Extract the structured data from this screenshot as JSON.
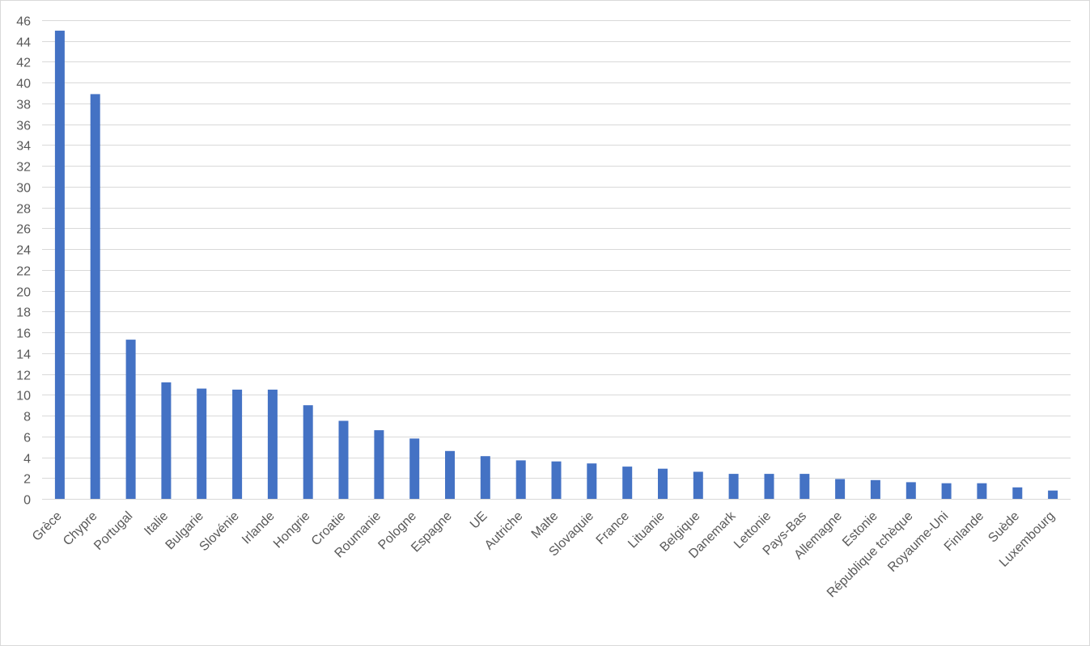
{
  "chart_data": {
    "type": "bar",
    "title": "",
    "xlabel": "",
    "ylabel": "",
    "ylim": [
      0,
      46
    ],
    "ytick_step": 2,
    "grid": true,
    "legend": "none",
    "bar_color": "#4472c4",
    "categories": [
      "Grèce",
      "Chypre",
      "Portugal",
      "Italie",
      "Bulgarie",
      "Slovénie",
      "Irlande",
      "Hongrie",
      "Croatie",
      "Roumanie",
      "Pologne",
      "Espagne",
      "UE",
      "Autriche",
      "Malte",
      "Slovaquie",
      "France",
      "Lituanie",
      "Belgique",
      "Danemark",
      "Lettonie",
      "Pays-Bas",
      "Allemagne",
      "Estonie",
      "République tchèque",
      "Royaume-Uni",
      "Finlande",
      "Suède",
      "Luxembourg"
    ],
    "values": [
      45,
      38.9,
      15.3,
      11.2,
      10.6,
      10.5,
      10.5,
      9.0,
      7.5,
      6.6,
      5.8,
      4.6,
      4.1,
      3.7,
      3.6,
      3.4,
      3.1,
      2.9,
      2.6,
      2.4,
      2.4,
      2.4,
      1.9,
      1.8,
      1.6,
      1.5,
      1.5,
      1.1,
      0.8
    ]
  }
}
